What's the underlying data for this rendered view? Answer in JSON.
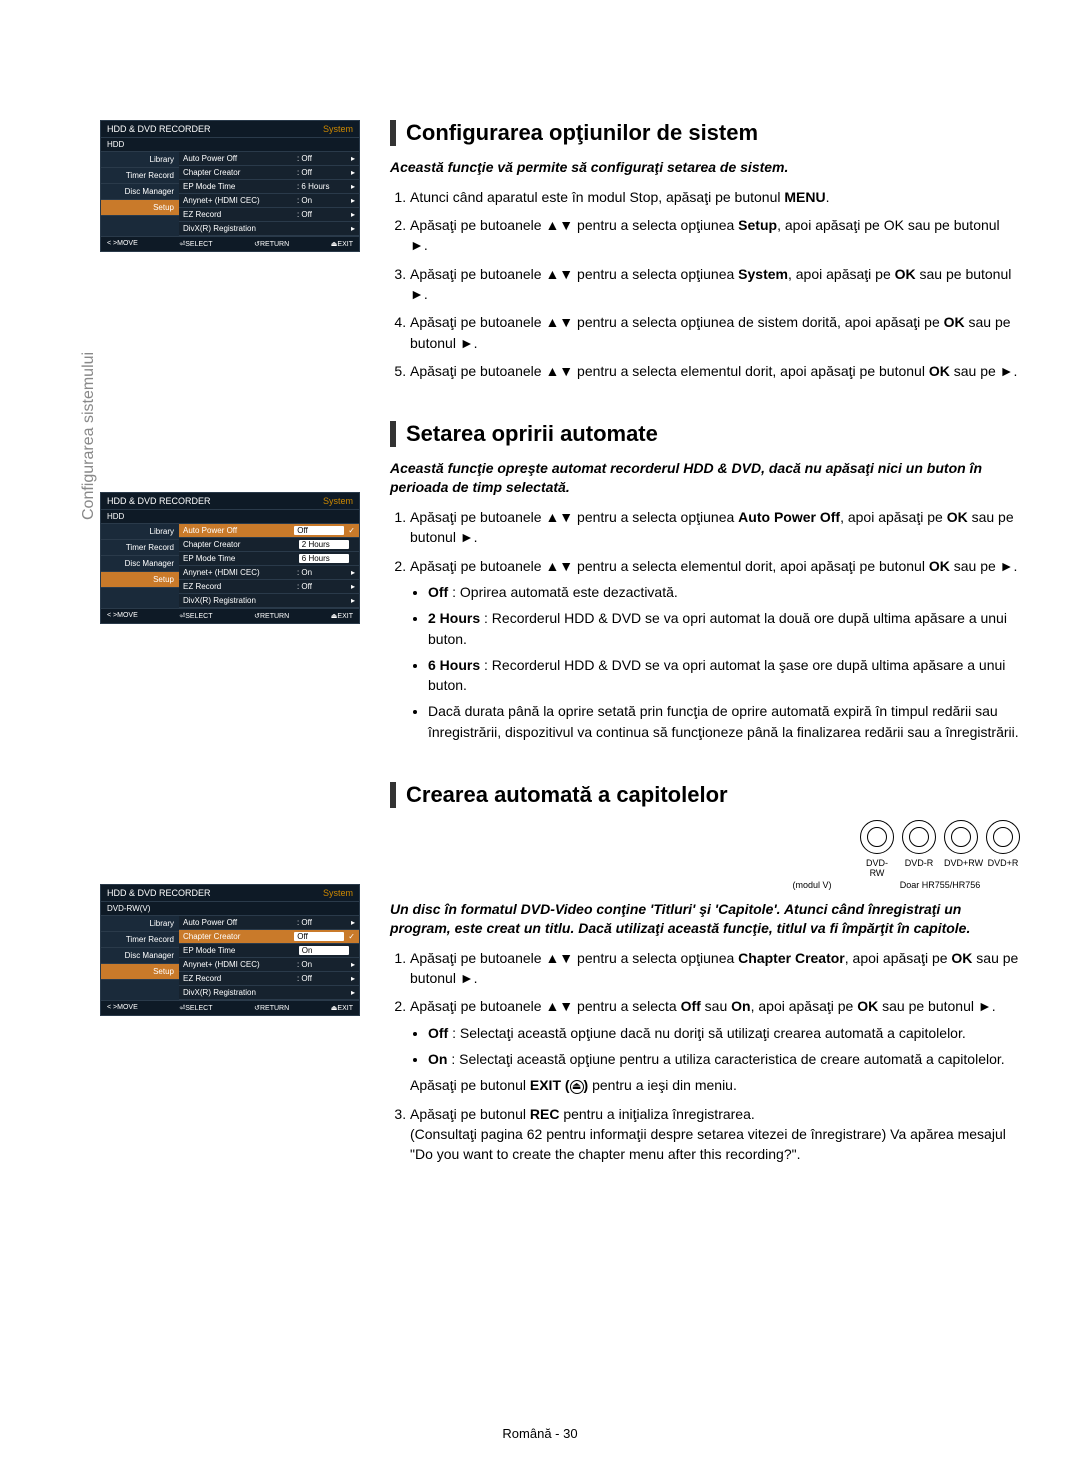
{
  "sideLabel": "Configurarea sistemului",
  "osd": {
    "title": "HDD & DVD RECORDER",
    "titleRight": "System",
    "nav": [
      "Library",
      "Timer Record",
      "Disc Manager",
      "Setup"
    ],
    "footer": [
      "< >MOVE",
      "⏎SELECT",
      "↺RETURN",
      "⏏EXIT"
    ]
  },
  "osd1": {
    "sub": "HDD",
    "rows": [
      {
        "label": "Auto Power Off",
        "val": ": Off",
        "arrow": true
      },
      {
        "label": "Chapter Creator",
        "val": ": Off",
        "arrow": true
      },
      {
        "label": "EP Mode Time",
        "val": ": 6 Hours",
        "arrow": true
      },
      {
        "label": "Anynet+ (HDMI CEC)",
        "val": ": On",
        "arrow": true
      },
      {
        "label": "EZ Record",
        "val": ": Off",
        "arrow": true
      },
      {
        "label": "DivX(R) Registration",
        "val": "",
        "arrow": true
      }
    ]
  },
  "osd2": {
    "sub": "HDD",
    "rows": [
      {
        "label": "Auto Power Off",
        "val": "Off",
        "box": true,
        "sel": true,
        "check": true
      },
      {
        "label": "Chapter Creator",
        "val": "2 Hours",
        "box": true
      },
      {
        "label": "EP Mode Time",
        "val": "6 Hours",
        "box": true
      },
      {
        "label": "Anynet+ (HDMI CEC)",
        "val": ": On",
        "arrow": true
      },
      {
        "label": "EZ Record",
        "val": ": Off",
        "arrow": true
      },
      {
        "label": "DivX(R) Registration",
        "val": "",
        "arrow": true
      }
    ]
  },
  "osd3": {
    "sub": "DVD-RW(V)",
    "rows": [
      {
        "label": "Auto Power Off",
        "val": ": Off",
        "arrow": true
      },
      {
        "label": "Chapter Creator",
        "val": "Off",
        "box": true,
        "sel": true,
        "check": true
      },
      {
        "label": "EP Mode Time",
        "val": "On",
        "box": true
      },
      {
        "label": "Anynet+ (HDMI CEC)",
        "val": ": On",
        "arrow": true
      },
      {
        "label": "EZ Record",
        "val": ": Off",
        "arrow": true
      },
      {
        "label": "DivX(R) Registration",
        "val": "",
        "arrow": true
      }
    ]
  },
  "section1": {
    "title": "Configurarea opţiunilor de sistem",
    "intro": "Această funcţie vă permite să configuraţi setarea de sistem.",
    "steps": [
      "Atunci când aparatul este în modul Stop, apăsaţi pe butonul <b>MENU</b>.",
      "Apăsaţi pe butoanele ▲▼ pentru a selecta opţiunea <b>Setup</b>, apoi apăsaţi pe OK sau pe butonul ►.",
      "Apăsaţi pe butoanele ▲▼ pentru a selecta opţiunea <b>System</b>, apoi apăsaţi pe <b>OK</b> sau pe butonul ►.",
      "Apăsaţi pe butoanele ▲▼ pentru a selecta opţiunea de sistem dorită, apoi apăsaţi pe <b>OK</b> sau pe butonul ►.",
      "Apăsaţi pe butoanele ▲▼ pentru a selecta elementul dorit, apoi apăsaţi pe butonul <b>OK</b> sau pe ►."
    ]
  },
  "section2": {
    "title": "Setarea opririi automate",
    "intro": "Această funcţie opreşte automat recorderul HDD & DVD, dacă nu apăsaţi nici un buton în perioada de timp selectată.",
    "steps": [
      "Apăsaţi pe butoanele ▲▼ pentru a selecta opţiunea <b>Auto Power Off</b>, apoi apăsaţi pe <b>OK</b> sau pe butonul ►.",
      "Apăsaţi pe butoanele ▲▼ pentru a selecta elementul dorit, apoi apăsaţi pe butonul <b>OK</b> sau pe ►."
    ],
    "bullets": [
      "<b>Off</b> : Oprirea automată este dezactivată.",
      "<b>2 Hours</b> : Recorderul HDD & DVD se va opri automat la două ore după ultima apăsare a unui buton.",
      "<b>6 Hours</b> : Recorderul HDD & DVD se va opri automat la şase ore după ultima apăsare a unui buton.",
      "Dacă durata până la oprire setată prin funcţia de oprire automată expiră în timpul redării sau înregistrării, dispozitivul va continua să funcţioneze până la finalizarea redării sau a înregistrării."
    ]
  },
  "section3": {
    "title": "Crearea automată a capitolelor",
    "discLabels": [
      "DVD-RW",
      "DVD-R",
      "DVD+RW",
      "DVD+R"
    ],
    "discNote1": "(modul V)",
    "discNote2": "Doar HR755/HR756",
    "intro": "Un disc în formatul DVD-Video conţine 'Titluri' şi 'Capitole'. Atunci când înregistraţi un program, este creat un titlu. Dacă utilizaţi această funcţie, titlul va fi împărţit în capitole.",
    "steps": [
      "Apăsaţi pe butoanele ▲▼ pentru a selecta opţiunea <b>Chapter Creator</b>, apoi apăsaţi pe <b>OK</b> sau pe butonul ►.",
      "Apăsaţi pe butoanele ▲▼ pentru a selecta <b>Off</b> sau <b>On</b>, apoi apăsaţi pe <b>OK</b> sau pe butonul ►."
    ],
    "bullets": [
      "<b>Off</b> : Selectaţi această opţiune dacă nu doriţi să utilizaţi crearea automată a capitolelor.",
      "<b>On</b> : Selectaţi această opţiune pentru a utiliza caracteristica de creare automată a capitolelor."
    ],
    "afterBullets": "Apăsaţi pe butonul <b>EXIT (</b><span class='exit-icon'>⏏</span><b>)</b> pentru a ieşi din meniu.",
    "step3": "Apăsaţi pe butonul <b>REC</b> pentru a iniţializa înregistrarea.<br>(Consultaţi pagina 62 pentru informaţii despre setarea vitezei de înregistrare) Va apărea mesajul \"Do you want to create the chapter menu after this recording?\"."
  },
  "pageFoot": "Română - 30"
}
